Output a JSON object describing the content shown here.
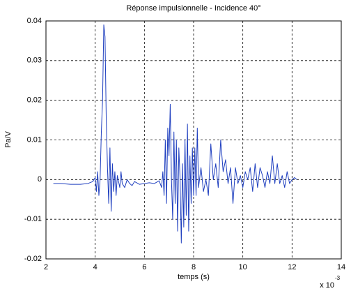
{
  "chart_data": {
    "type": "line",
    "title": "Réponse impulsionnelle - Incidence 40°",
    "x_label": "temps (s)",
    "y_label": "Pa/V",
    "x_scale_label": {
      "base": "x 10",
      "exponent": "-3"
    },
    "x": [
      2.3,
      2.6,
      3.0,
      3.4,
      3.7,
      3.9,
      4.0,
      4.05,
      4.1,
      4.15,
      4.2,
      4.25,
      4.3,
      4.35,
      4.4,
      4.45,
      4.5,
      4.55,
      4.6,
      4.65,
      4.7,
      4.75,
      4.8,
      4.85,
      4.9,
      5.0,
      5.05,
      5.1,
      5.2,
      5.3,
      5.4,
      5.5,
      5.6,
      5.8,
      6.0,
      6.2,
      6.4,
      6.6,
      6.7,
      6.75,
      6.8,
      6.85,
      6.9,
      6.95,
      7.0,
      7.05,
      7.1,
      7.15,
      7.2,
      7.25,
      7.3,
      7.35,
      7.4,
      7.45,
      7.5,
      7.55,
      7.6,
      7.65,
      7.7,
      7.75,
      7.8,
      7.85,
      7.9,
      7.95,
      8.0,
      8.05,
      8.1,
      8.15,
      8.2,
      8.3,
      8.4,
      8.5,
      8.6,
      8.7,
      8.8,
      8.9,
      9.0,
      9.1,
      9.2,
      9.3,
      9.4,
      9.5,
      9.6,
      9.7,
      9.8,
      9.9,
      10.0,
      10.1,
      10.2,
      10.3,
      10.4,
      10.5,
      10.6,
      10.7,
      10.8,
      10.9,
      11.0,
      11.1,
      11.2,
      11.3,
      11.4,
      11.5,
      11.6,
      11.7,
      11.8,
      11.9,
      12.0,
      12.1,
      12.2
    ],
    "series": [
      {
        "color": "#1f3fbf",
        "values": [
          -0.001,
          -0.001,
          -0.0012,
          -0.0012,
          -0.001,
          -0.0005,
          0.0005,
          -0.003,
          0.002,
          -0.004,
          0.0,
          0.012,
          0.02,
          0.039,
          0.036,
          0.015,
          0.003,
          -0.006,
          0.008,
          -0.008,
          0.004,
          -0.003,
          0.002,
          -0.004,
          0.001,
          -0.002,
          0.002,
          -0.001,
          -0.002,
          0.0,
          -0.001,
          -0.0015,
          -0.0005,
          -0.0012,
          -0.001,
          -0.0008,
          -0.001,
          -0.0003,
          -0.002,
          0.002,
          -0.004,
          0.01,
          -0.006,
          0.013,
          0.006,
          0.019,
          0.0,
          -0.01,
          0.012,
          -0.006,
          0.01,
          -0.013,
          0.008,
          0.0,
          -0.016,
          0.004,
          -0.012,
          0.01,
          -0.009,
          0.014,
          -0.013,
          0.006,
          -0.006,
          0.008,
          -0.004,
          0.008,
          -0.004,
          0.013,
          -0.002,
          0.003,
          -0.003,
          0.0,
          -0.004,
          0.009,
          0.0,
          0.004,
          -0.002,
          0.01,
          0.002,
          0.005,
          -0.001,
          0.003,
          -0.006,
          0.003,
          -0.001,
          0.001,
          -0.002,
          0.002,
          0.0,
          0.003,
          -0.003,
          0.004,
          -0.002,
          0.003,
          0.001,
          -0.002,
          0.002,
          -0.001,
          0.006,
          -0.001,
          0.004,
          -0.001,
          0.001,
          -0.002,
          0.002,
          -0.001,
          0.0,
          0.0005,
          0.0
        ]
      }
    ],
    "xlim": [
      2,
      14
    ],
    "xticks": [
      2,
      4,
      6,
      8,
      10,
      12,
      14
    ],
    "ylim": [
      -0.02,
      0.04
    ],
    "yticks": [
      -0.02,
      -0.01,
      0,
      0.01,
      0.02,
      0.03,
      0.04
    ],
    "grid": true
  }
}
